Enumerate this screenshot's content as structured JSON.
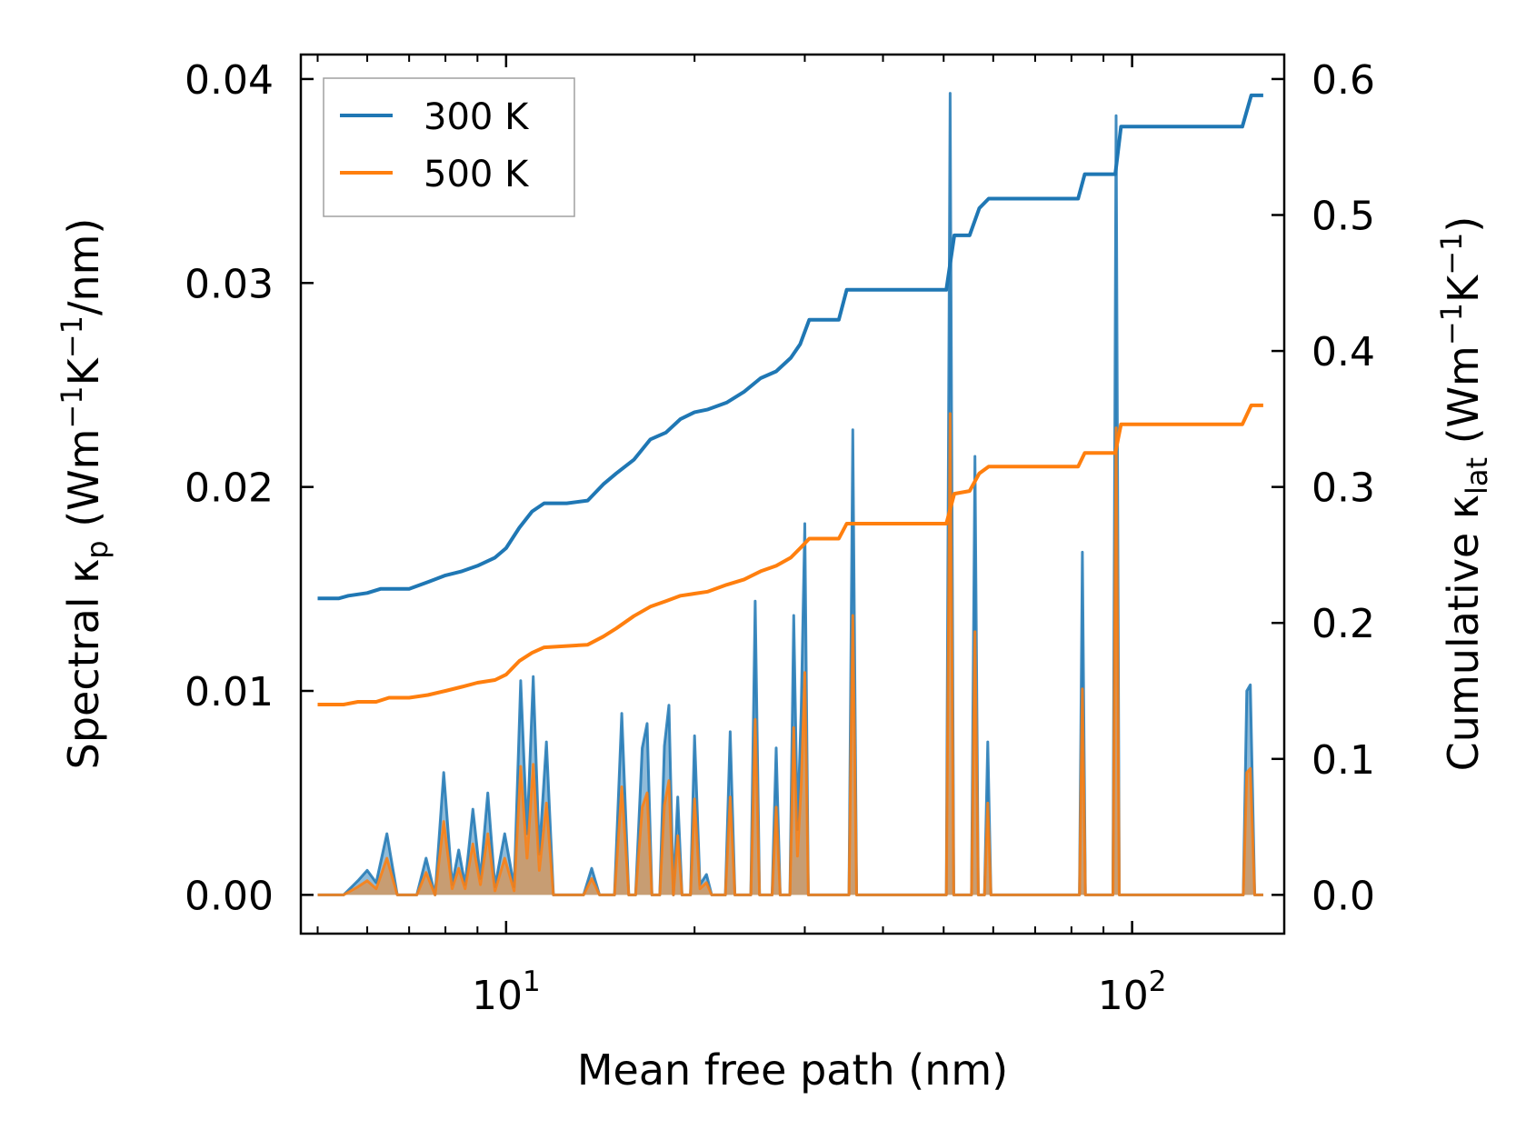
{
  "chart_data": {
    "type": "line",
    "xscale": "log",
    "xlabel": "Mean free path (nm)",
    "xlim": [
      4.7,
      175
    ],
    "x_ticks": [
      {
        "value": 10,
        "base": "10",
        "exp": "1"
      },
      {
        "value": 100,
        "base": "10",
        "exp": "2"
      }
    ],
    "left_axis": {
      "label_parts": {
        "a": "Spectral κ",
        "sub": "p",
        "b": " (Wm",
        "sup1": "−1",
        "c": "K",
        "sup2": "−1",
        "d": "/nm)"
      },
      "ylim": [
        -0.0019,
        0.0412
      ],
      "ticks": [
        0.0,
        0.01,
        0.02,
        0.03,
        0.04
      ],
      "tick_labels": [
        "0.00",
        "0.01",
        "0.02",
        "0.03",
        "0.04"
      ]
    },
    "right_axis": {
      "label_parts": {
        "a": "Cumulative κ",
        "sub": "lat",
        "b": " (Wm",
        "sup1": "−1",
        "c": "K",
        "sup2": "−1",
        "d": ")"
      },
      "ylim": [
        -0.0285,
        0.618
      ],
      "ticks": [
        0.0,
        0.1,
        0.2,
        0.3,
        0.4,
        0.5,
        0.6
      ],
      "tick_labels": [
        "0.0",
        "0.1",
        "0.2",
        "0.3",
        "0.4",
        "0.5",
        "0.6"
      ]
    },
    "legend": {
      "position": "top-left",
      "entries": [
        {
          "name": "300 K",
          "color": "#1f77b4"
        },
        {
          "name": "500 K",
          "color": "#ff7f0e"
        }
      ]
    },
    "series": [
      {
        "name": "300 K",
        "color": "#1f77b4",
        "axis": "right",
        "kind": "cumulative",
        "points": [
          [
            5.0,
            0.218
          ],
          [
            5.4,
            0.218
          ],
          [
            5.6,
            0.22
          ],
          [
            6.0,
            0.222
          ],
          [
            6.3,
            0.225
          ],
          [
            7.0,
            0.225
          ],
          [
            7.5,
            0.23
          ],
          [
            8.0,
            0.235
          ],
          [
            8.5,
            0.238
          ],
          [
            9.0,
            0.242
          ],
          [
            9.6,
            0.248
          ],
          [
            10.0,
            0.255
          ],
          [
            10.5,
            0.27
          ],
          [
            11.0,
            0.282
          ],
          [
            11.5,
            0.288
          ],
          [
            12.5,
            0.288
          ],
          [
            13.5,
            0.29
          ],
          [
            14.3,
            0.302
          ],
          [
            15.0,
            0.31
          ],
          [
            16.0,
            0.32
          ],
          [
            17.0,
            0.335
          ],
          [
            18.0,
            0.34
          ],
          [
            19.0,
            0.35
          ],
          [
            20.0,
            0.355
          ],
          [
            21.0,
            0.357
          ],
          [
            22.5,
            0.362
          ],
          [
            24.0,
            0.37
          ],
          [
            25.5,
            0.38
          ],
          [
            27.0,
            0.385
          ],
          [
            28.5,
            0.395
          ],
          [
            29.5,
            0.405
          ],
          [
            30.5,
            0.423
          ],
          [
            34.0,
            0.423
          ],
          [
            35.0,
            0.445
          ],
          [
            50.5,
            0.445
          ],
          [
            52.0,
            0.485
          ],
          [
            55.0,
            0.485
          ],
          [
            57.0,
            0.505
          ],
          [
            59.0,
            0.512
          ],
          [
            82.0,
            0.512
          ],
          [
            84.0,
            0.53
          ],
          [
            94.0,
            0.53
          ],
          [
            96.0,
            0.565
          ],
          [
            150.0,
            0.565
          ],
          [
            155.0,
            0.588
          ],
          [
            162.0,
            0.588
          ]
        ]
      },
      {
        "name": "500 K",
        "color": "#ff7f0e",
        "axis": "right",
        "kind": "cumulative",
        "points": [
          [
            5.0,
            0.14
          ],
          [
            5.5,
            0.14
          ],
          [
            5.8,
            0.142
          ],
          [
            6.2,
            0.142
          ],
          [
            6.5,
            0.145
          ],
          [
            7.0,
            0.145
          ],
          [
            7.5,
            0.147
          ],
          [
            8.0,
            0.15
          ],
          [
            8.5,
            0.153
          ],
          [
            9.0,
            0.156
          ],
          [
            9.6,
            0.158
          ],
          [
            10.0,
            0.162
          ],
          [
            10.5,
            0.172
          ],
          [
            11.0,
            0.178
          ],
          [
            11.5,
            0.182
          ],
          [
            13.5,
            0.184
          ],
          [
            14.3,
            0.19
          ],
          [
            15.0,
            0.196
          ],
          [
            16.0,
            0.205
          ],
          [
            17.0,
            0.212
          ],
          [
            18.0,
            0.216
          ],
          [
            19.0,
            0.22
          ],
          [
            21.0,
            0.223
          ],
          [
            22.5,
            0.228
          ],
          [
            24.0,
            0.232
          ],
          [
            25.5,
            0.238
          ],
          [
            27.0,
            0.242
          ],
          [
            28.5,
            0.248
          ],
          [
            29.5,
            0.255
          ],
          [
            30.5,
            0.262
          ],
          [
            34.0,
            0.262
          ],
          [
            35.0,
            0.273
          ],
          [
            50.5,
            0.273
          ],
          [
            52.0,
            0.295
          ],
          [
            55.0,
            0.297
          ],
          [
            57.0,
            0.31
          ],
          [
            59.0,
            0.315
          ],
          [
            82.0,
            0.315
          ],
          [
            84.0,
            0.325
          ],
          [
            94.0,
            0.325
          ],
          [
            96.0,
            0.346
          ],
          [
            150.0,
            0.346
          ],
          [
            155.0,
            0.36
          ],
          [
            162.0,
            0.36
          ]
        ]
      },
      {
        "name": "300 K",
        "color": "#1f77b4",
        "axis": "left",
        "kind": "spectral",
        "points": [
          [
            5.0,
            0
          ],
          [
            5.5,
            0
          ],
          [
            5.8,
            0.0007
          ],
          [
            6.0,
            0.0012
          ],
          [
            6.2,
            0.0006
          ],
          [
            6.45,
            0.003
          ],
          [
            6.7,
            0
          ],
          [
            7.2,
            0
          ],
          [
            7.45,
            0.0018
          ],
          [
            7.7,
            0
          ],
          [
            7.95,
            0.006
          ],
          [
            8.2,
            0.0005
          ],
          [
            8.4,
            0.0022
          ],
          [
            8.6,
            0.0005
          ],
          [
            8.85,
            0.0042
          ],
          [
            9.1,
            0.0008
          ],
          [
            9.35,
            0.005
          ],
          [
            9.6,
            0.0004
          ],
          [
            9.95,
            0.003
          ],
          [
            10.3,
            0.0004
          ],
          [
            10.55,
            0.0105
          ],
          [
            10.8,
            0.003
          ],
          [
            11.05,
            0.0107
          ],
          [
            11.3,
            0.002
          ],
          [
            11.6,
            0.0075
          ],
          [
            11.9,
            0
          ],
          [
            13.3,
            0
          ],
          [
            13.7,
            0.0013
          ],
          [
            14.1,
            0
          ],
          [
            14.9,
            0
          ],
          [
            15.3,
            0.0089
          ],
          [
            15.7,
            0
          ],
          [
            16.1,
            0
          ],
          [
            16.5,
            0.0072
          ],
          [
            16.8,
            0.0084
          ],
          [
            17.1,
            0
          ],
          [
            17.6,
            0
          ],
          [
            17.9,
            0.0073
          ],
          [
            18.2,
            0.0093
          ],
          [
            18.5,
            0
          ],
          [
            18.8,
            0.0048
          ],
          [
            19.1,
            0
          ],
          [
            19.7,
            0
          ],
          [
            20.0,
            0.0078
          ],
          [
            20.4,
            0.0005
          ],
          [
            20.9,
            0.001
          ],
          [
            21.3,
            0
          ],
          [
            22.4,
            0
          ],
          [
            22.8,
            0.008
          ],
          [
            23.2,
            0
          ],
          [
            24.6,
            0
          ],
          [
            25.0,
            0.0144
          ],
          [
            25.4,
            0
          ],
          [
            26.6,
            0
          ],
          [
            27.0,
            0.0072
          ],
          [
            27.4,
            0
          ],
          [
            28.4,
            0
          ],
          [
            28.8,
            0.0137
          ],
          [
            29.2,
            0.0032
          ],
          [
            29.6,
            0.009
          ],
          [
            30.0,
            0.0182
          ],
          [
            30.4,
            0
          ],
          [
            35.3,
            0
          ],
          [
            35.8,
            0.0228
          ],
          [
            36.3,
            0
          ],
          [
            50.5,
            0
          ],
          [
            51.2,
            0.0393
          ],
          [
            51.9,
            0
          ],
          [
            55.4,
            0
          ],
          [
            56.1,
            0.0215
          ],
          [
            56.8,
            0
          ],
          [
            58.1,
            0
          ],
          [
            58.8,
            0.0075
          ],
          [
            59.5,
            0
          ],
          [
            82.4,
            0
          ],
          [
            83.3,
            0.0168
          ],
          [
            84.2,
            0
          ],
          [
            93.2,
            0
          ],
          [
            94.3,
            0.0382
          ],
          [
            95.4,
            0
          ],
          [
            150.5,
            0
          ],
          [
            152.5,
            0.01
          ],
          [
            154.5,
            0.0103
          ],
          [
            157.0,
            0
          ],
          [
            162.0,
            0
          ]
        ]
      },
      {
        "name": "500 K",
        "color": "#ff7f0e",
        "axis": "left",
        "kind": "spectral",
        "points": [
          [
            5.0,
            0
          ],
          [
            5.5,
            0
          ],
          [
            5.8,
            0.0004
          ],
          [
            6.0,
            0.0007
          ],
          [
            6.2,
            0.0003
          ],
          [
            6.45,
            0.0018
          ],
          [
            6.7,
            0
          ],
          [
            7.2,
            0
          ],
          [
            7.45,
            0.0011
          ],
          [
            7.7,
            0
          ],
          [
            7.95,
            0.0036
          ],
          [
            8.2,
            0.0003
          ],
          [
            8.4,
            0.0013
          ],
          [
            8.6,
            0.0003
          ],
          [
            8.85,
            0.0025
          ],
          [
            9.1,
            0.0005
          ],
          [
            9.35,
            0.003
          ],
          [
            9.6,
            0.0002
          ],
          [
            9.95,
            0.0018
          ],
          [
            10.3,
            0.0002
          ],
          [
            10.55,
            0.0063
          ],
          [
            10.8,
            0.0018
          ],
          [
            11.05,
            0.0064
          ],
          [
            11.3,
            0.0012
          ],
          [
            11.6,
            0.0045
          ],
          [
            11.9,
            0
          ],
          [
            13.3,
            0
          ],
          [
            13.7,
            0.0008
          ],
          [
            14.1,
            0
          ],
          [
            14.9,
            0
          ],
          [
            15.3,
            0.0053
          ],
          [
            15.7,
            0
          ],
          [
            16.1,
            0
          ],
          [
            16.5,
            0.0043
          ],
          [
            16.8,
            0.005
          ],
          [
            17.1,
            0
          ],
          [
            17.6,
            0
          ],
          [
            17.9,
            0.0044
          ],
          [
            18.2,
            0.0056
          ],
          [
            18.5,
            0
          ],
          [
            18.8,
            0.0029
          ],
          [
            19.1,
            0
          ],
          [
            19.7,
            0
          ],
          [
            20.0,
            0.0047
          ],
          [
            20.4,
            0.0003
          ],
          [
            20.9,
            0.0006
          ],
          [
            21.3,
            0
          ],
          [
            22.4,
            0
          ],
          [
            22.8,
            0.0048
          ],
          [
            23.2,
            0
          ],
          [
            24.6,
            0
          ],
          [
            25.0,
            0.0086
          ],
          [
            25.4,
            0
          ],
          [
            26.6,
            0
          ],
          [
            27.0,
            0.0043
          ],
          [
            27.4,
            0
          ],
          [
            28.4,
            0
          ],
          [
            28.8,
            0.0082
          ],
          [
            29.2,
            0.0019
          ],
          [
            29.6,
            0.0054
          ],
          [
            30.0,
            0.0109
          ],
          [
            30.4,
            0
          ],
          [
            35.3,
            0
          ],
          [
            35.8,
            0.0137
          ],
          [
            36.3,
            0
          ],
          [
            50.5,
            0
          ],
          [
            51.2,
            0.0236
          ],
          [
            51.9,
            0
          ],
          [
            55.4,
            0
          ],
          [
            56.1,
            0.0129
          ],
          [
            56.8,
            0
          ],
          [
            58.1,
            0
          ],
          [
            58.8,
            0.0045
          ],
          [
            59.5,
            0
          ],
          [
            82.4,
            0
          ],
          [
            83.3,
            0.0101
          ],
          [
            84.2,
            0
          ],
          [
            93.2,
            0
          ],
          [
            94.3,
            0.0229
          ],
          [
            95.4,
            0
          ],
          [
            150.5,
            0
          ],
          [
            152.5,
            0.006
          ],
          [
            154.5,
            0.0062
          ],
          [
            157.0,
            0
          ],
          [
            162.0,
            0
          ]
        ]
      }
    ]
  }
}
